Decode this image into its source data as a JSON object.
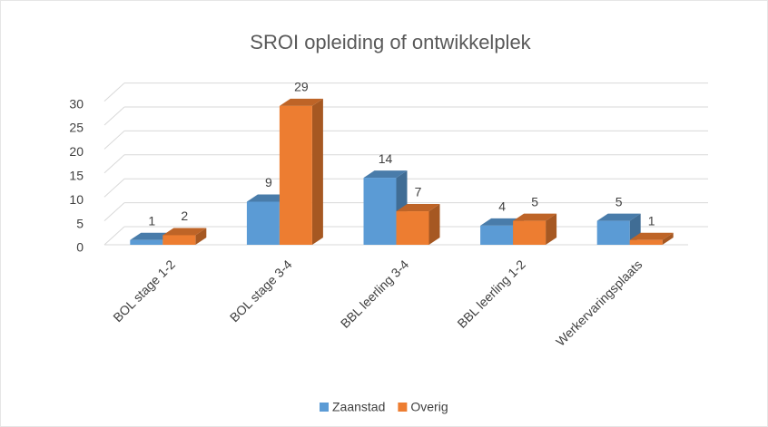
{
  "chart_data": {
    "type": "bar3d",
    "title": "SROI opleiding of ontwikkelplek",
    "categories": [
      "BOL stage 1-2",
      "BOL stage 3-4",
      "BBL leerling 3-4",
      "BBL leerling 1-2",
      "Werkervaringsplaats"
    ],
    "series": [
      {
        "name": "Zaanstad",
        "color": "#5b9bd5",
        "values": [
          1,
          9,
          14,
          4,
          5
        ]
      },
      {
        "name": "Overig",
        "color": "#ed7d31",
        "values": [
          2,
          29,
          7,
          5,
          1
        ]
      }
    ],
    "ylim": [
      0,
      30
    ],
    "yticks": [
      0,
      5,
      10,
      15,
      20,
      25,
      30
    ],
    "grid": true,
    "legend": "bottom"
  }
}
